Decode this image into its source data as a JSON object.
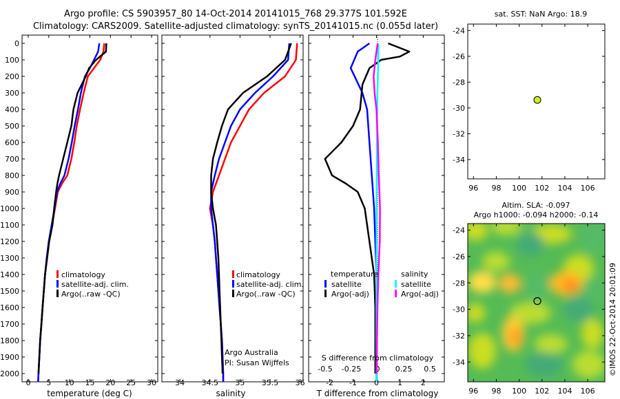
{
  "header": {
    "title_line1": "Argo profile: CS 5903957_80 14-Oct-2014 20141015_768 29.377S 101.592E",
    "title_line2": "Climatology: CARS2009. Satellite-adjusted climatology: synTS_20141015.nc (0.055d later)"
  },
  "colors": {
    "climatology": "#ff0000",
    "satellite": "#0000ff",
    "argo": "#000000",
    "sal_satellite": "#00ffff",
    "sal_argo": "#ff00ff",
    "float_marker": "#ccee22"
  },
  "depth_ticks": [
    "0",
    "100",
    "200",
    "300",
    "400",
    "500",
    "600",
    "700",
    "800",
    "900",
    "1000",
    "1100",
    "1200",
    "1300",
    "1400",
    "1500",
    "1600",
    "1700",
    "1800",
    "1900",
    "2000"
  ],
  "panels": {
    "temperature": {
      "xlabel": "temperature (deg C)",
      "xticks": [
        "0",
        "5",
        "10",
        "15",
        "20",
        "25",
        "30"
      ],
      "legend": [
        "climatology",
        "satellite-adj. clim.",
        "Argo(..raw -QC)"
      ]
    },
    "salinity": {
      "xlabel": "salinity",
      "xticks": [
        "34",
        "34.5",
        "35",
        "35.5",
        "36"
      ],
      "legend": [
        "climatology",
        "satellite-adj. clim.",
        "Argo(..raw -QC)"
      ],
      "note1": "Argo Australia",
      "note2": "PI: Susan Wijffels"
    },
    "difference": {
      "top_label": "S difference from climatology",
      "xlabel": "T difference from climatology",
      "top_ticks": [
        "-0.5",
        "-0.25",
        "0",
        "0.25",
        "0.5"
      ],
      "bottom_ticks": [
        "-2",
        "-1",
        "0",
        "1",
        "2"
      ],
      "legend_t_title": "temperature",
      "legend_s_title": "salinity",
      "legend_t": [
        "satellite",
        "Argo(-adj)"
      ],
      "legend_s": [
        "satellite",
        "Argo(-adj)"
      ]
    }
  },
  "map_sst": {
    "title": "sat. SST: NaN Argo: 18.9",
    "xticks": [
      "96",
      "98",
      "100",
      "102",
      "104",
      "106"
    ],
    "yticks": [
      "-24",
      "-26",
      "-28",
      "-30",
      "-32",
      "-34"
    ]
  },
  "map_sla": {
    "title_line1": "Altim. SLA: -0.097",
    "title_line2": "Argo h1000: -0.094 h2000: -0.14",
    "xticks": [
      "96",
      "98",
      "100",
      "102",
      "104",
      "106"
    ],
    "yticks": [
      "-24",
      "-26",
      "-28",
      "-30",
      "-32",
      "-34"
    ],
    "side_text": "©IMOS 22-Oct-2014 20:01:09"
  },
  "chart_data": [
    {
      "type": "line",
      "xlabel": "temperature (deg C)",
      "ylim": [
        2100,
        0
      ],
      "xlim": [
        -1.5,
        31.5
      ],
      "series": [
        {
          "name": "climatology",
          "points": [
            [
              18.5,
              0
            ],
            [
              18.3,
              50
            ],
            [
              17.5,
              100
            ],
            [
              16,
              150
            ],
            [
              14.5,
              200
            ],
            [
              13.5,
              300
            ],
            [
              12.6,
              400
            ],
            [
              11.8,
              500
            ],
            [
              11.2,
              600
            ],
            [
              10.5,
              700
            ],
            [
              9.5,
              800
            ],
            [
              8.2,
              850
            ],
            [
              7.2,
              900
            ],
            [
              6.5,
              1000
            ],
            [
              5.8,
              1100
            ],
            [
              5.1,
              1200
            ],
            [
              4.6,
              1300
            ],
            [
              4.1,
              1400
            ],
            [
              3.8,
              1500
            ],
            [
              3.5,
              1600
            ],
            [
              3.2,
              1700
            ],
            [
              2.9,
              1800
            ],
            [
              2.7,
              1900
            ],
            [
              2.5,
              2000
            ],
            [
              2.4,
              2050
            ]
          ]
        },
        {
          "name": "satellite-adj. clim.",
          "points": [
            [
              17.3,
              0
            ],
            [
              17,
              50
            ],
            [
              16,
              100
            ],
            [
              15,
              150
            ],
            [
              13.8,
              200
            ],
            [
              12.8,
              300
            ],
            [
              12.1,
              400
            ],
            [
              11.3,
              500
            ],
            [
              10.6,
              600
            ],
            [
              9.8,
              700
            ],
            [
              8.8,
              800
            ],
            [
              7.8,
              850
            ],
            [
              7,
              900
            ],
            [
              6.4,
              1000
            ],
            [
              5.7,
              1100
            ],
            [
              5,
              1200
            ],
            [
              4.5,
              1300
            ],
            [
              4.1,
              1400
            ],
            [
              3.8,
              1500
            ],
            [
              3.5,
              1600
            ],
            [
              3.2,
              1700
            ],
            [
              2.9,
              1800
            ],
            [
              2.7,
              1900
            ],
            [
              2.5,
              2000
            ],
            [
              2.4,
              2050
            ]
          ]
        },
        {
          "name": "Argo(..raw -QC)",
          "points": [
            [
              19,
              0
            ],
            [
              18.9,
              50
            ],
            [
              16.5,
              100
            ],
            [
              14.8,
              150
            ],
            [
              14,
              200
            ],
            [
              12,
              300
            ],
            [
              11,
              400
            ],
            [
              10.5,
              500
            ],
            [
              9.5,
              600
            ],
            [
              8.5,
              700
            ],
            [
              7.5,
              800
            ],
            [
              7.1,
              850
            ],
            [
              6.8,
              900
            ],
            [
              6.3,
              1000
            ],
            [
              5.9,
              1100
            ],
            [
              5.1,
              1200
            ],
            [
              4.6,
              1300
            ],
            [
              4.1,
              1400
            ],
            [
              3.8,
              1500
            ],
            [
              3.5,
              1600
            ],
            [
              3.2,
              1700
            ],
            [
              2.9,
              1800
            ],
            [
              2.7,
              1900
            ],
            [
              2.5,
              2000
            ]
          ]
        }
      ]
    },
    {
      "type": "line",
      "xlabel": "salinity",
      "ylim": [
        2100,
        0
      ],
      "xlim": [
        33.7,
        36.05
      ],
      "series": [
        {
          "name": "climatology",
          "points": [
            [
              35.95,
              0
            ],
            [
              35.93,
              100
            ],
            [
              35.75,
              200
            ],
            [
              35.4,
              300
            ],
            [
              35.15,
              400
            ],
            [
              35.0,
              500
            ],
            [
              34.85,
              600
            ],
            [
              34.75,
              700
            ],
            [
              34.65,
              800
            ],
            [
              34.55,
              900
            ],
            [
              34.5,
              1000
            ],
            [
              34.55,
              1100
            ],
            [
              34.58,
              1200
            ],
            [
              34.6,
              1300
            ],
            [
              34.62,
              1400
            ],
            [
              34.64,
              1500
            ],
            [
              34.66,
              1600
            ],
            [
              34.68,
              1700
            ],
            [
              34.7,
              1800
            ],
            [
              34.71,
              1900
            ],
            [
              34.72,
              2000
            ],
            [
              34.72,
              2050
            ]
          ]
        },
        {
          "name": "satellite-adj. clim.",
          "points": [
            [
              35.82,
              0
            ],
            [
              35.8,
              100
            ],
            [
              35.55,
              200
            ],
            [
              35.25,
              300
            ],
            [
              35.0,
              400
            ],
            [
              34.85,
              500
            ],
            [
              34.75,
              600
            ],
            [
              34.65,
              700
            ],
            [
              34.58,
              800
            ],
            [
              34.52,
              900
            ],
            [
              34.52,
              1000
            ],
            [
              34.55,
              1100
            ],
            [
              34.58,
              1200
            ],
            [
              34.6,
              1300
            ],
            [
              34.62,
              1400
            ],
            [
              34.64,
              1500
            ],
            [
              34.66,
              1600
            ],
            [
              34.68,
              1700
            ],
            [
              34.7,
              1800
            ],
            [
              34.71,
              1900
            ],
            [
              34.72,
              2000
            ],
            [
              34.72,
              2050
            ]
          ]
        },
        {
          "name": "Argo(..raw -QC)",
          "points": [
            [
              35.85,
              0
            ],
            [
              35.75,
              100
            ],
            [
              35.45,
              200
            ],
            [
              35.05,
              300
            ],
            [
              34.8,
              400
            ],
            [
              34.7,
              500
            ],
            [
              34.62,
              600
            ],
            [
              34.55,
              700
            ],
            [
              34.52,
              800
            ],
            [
              34.52,
              900
            ],
            [
              34.55,
              1000
            ],
            [
              34.6,
              1100
            ],
            [
              34.62,
              1200
            ],
            [
              34.64,
              1300
            ],
            [
              34.65,
              1400
            ],
            [
              34.66,
              1500
            ],
            [
              34.67,
              1600
            ],
            [
              34.68,
              1700
            ],
            [
              34.69,
              1800
            ],
            [
              34.7,
              1900
            ],
            [
              34.71,
              2000
            ]
          ]
        }
      ]
    },
    {
      "type": "line",
      "xlabel": "T difference from climatology",
      "ylim": [
        2100,
        0
      ],
      "xlim": [
        -2.9,
        2.9
      ],
      "series": [
        {
          "name": "satellite",
          "points": [
            [
              -0.3,
              0
            ],
            [
              -0.8,
              50
            ],
            [
              -1.1,
              150
            ],
            [
              -0.6,
              300
            ],
            [
              -0.4,
              400
            ],
            [
              -0.3,
              600
            ],
            [
              -0.2,
              800
            ],
            [
              -0.1,
              1000
            ],
            [
              -0.05,
              1200
            ],
            [
              0,
              1400
            ],
            [
              0,
              1600
            ],
            [
              0,
              2050
            ]
          ]
        },
        {
          "name": "Argo(-adj)",
          "points": [
            [
              0.5,
              0
            ],
            [
              1.4,
              50
            ],
            [
              1.0,
              80
            ],
            [
              0.2,
              100
            ],
            [
              -0.3,
              150
            ],
            [
              -0.6,
              250
            ],
            [
              -0.7,
              400
            ],
            [
              -1.0,
              500
            ],
            [
              -1.5,
              600
            ],
            [
              -2.2,
              700
            ],
            [
              -1.9,
              800
            ],
            [
              -1.3,
              850
            ],
            [
              -0.8,
              900
            ],
            [
              -0.5,
              1000
            ],
            [
              -0.3,
              1200
            ],
            [
              -0.1,
              1400
            ],
            [
              -0.05,
              1600
            ],
            [
              -0.05,
              2000
            ]
          ]
        },
        {
          "name": "sal-satellite",
          "points": [
            [
              0.08,
              0
            ],
            [
              0.08,
              100
            ],
            [
              0.06,
              200
            ],
            [
              0.04,
              300
            ],
            [
              0.03,
              400
            ],
            [
              0.02,
              600
            ],
            [
              0.01,
              800
            ],
            [
              0.0,
              1000
            ],
            [
              0.0,
              1400
            ],
            [
              0.0,
              2050
            ]
          ]
        },
        {
          "name": "sal-argo",
          "points": [
            [
              0.05,
              0
            ],
            [
              -0.05,
              100
            ],
            [
              -0.12,
              200
            ],
            [
              -0.08,
              300
            ],
            [
              0.0,
              400
            ],
            [
              0.06,
              600
            ],
            [
              0.1,
              800
            ],
            [
              0.15,
              1000
            ],
            [
              0.14,
              1200
            ],
            [
              0.08,
              1400
            ],
            [
              0.04,
              1600
            ],
            [
              0.02,
              1800
            ],
            [
              0.0,
              2000
            ]
          ]
        }
      ]
    },
    {
      "type": "scatter",
      "title": "sat. SST: NaN Argo: 18.9",
      "xlim": [
        95.5,
        107.5
      ],
      "ylim": [
        -35.5,
        -23.5
      ],
      "points": [
        [
          101.592,
          -29.377
        ]
      ]
    },
    {
      "type": "heatmap",
      "title": "Altim. SLA: -0.097",
      "xlim": [
        95.5,
        107.5
      ],
      "ylim": [
        -35.5,
        -23.5
      ],
      "points": [
        [
          101.592,
          -29.377
        ]
      ]
    }
  ]
}
